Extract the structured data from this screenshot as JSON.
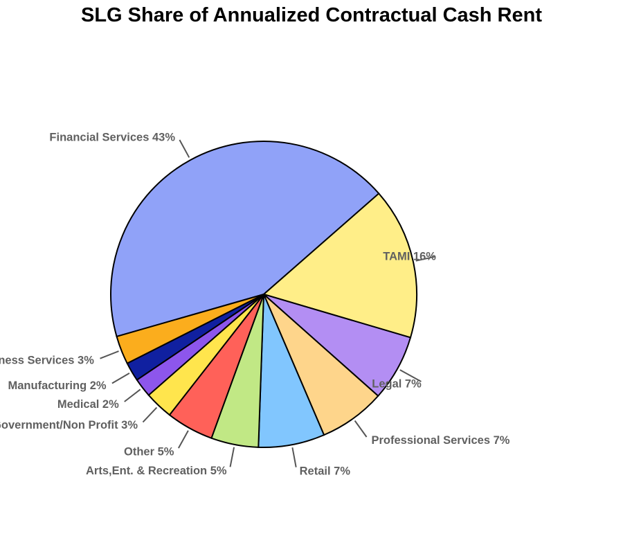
{
  "chart_data": {
    "type": "pie",
    "title": "SLG Share of Annualized Contractual Cash Rent",
    "slices": [
      {
        "label": "Financial Services",
        "pct_label": "43%",
        "value": 43.0,
        "color": "#90a2f8"
      },
      {
        "label": "TAMI",
        "pct_label": "16%",
        "value": 16.0,
        "color": "#ffee88"
      },
      {
        "label": "Legal",
        "pct_label": "7%",
        "value": 7.0,
        "color": "#b38ef3"
      },
      {
        "label": "Professional Services",
        "pct_label": "7%",
        "value": 7.0,
        "color": "#fed58b"
      },
      {
        "label": "Retail",
        "pct_label": "7%",
        "value": 7.0,
        "color": "#81c6fe"
      },
      {
        "label": "Arts,Ent. & Recreation",
        "pct_label": "5%",
        "value": 5.0,
        "color": "#c1e885"
      },
      {
        "label": "Other",
        "pct_label": "5%",
        "value": 5.0,
        "color": "#ff6159"
      },
      {
        "label": "Government/Non Profit",
        "pct_label": "3%",
        "value": 3.0,
        "color": "#ffe54d"
      },
      {
        "label": "Medical",
        "pct_label": "2%",
        "value": 2.0,
        "color": "#8d56ec"
      },
      {
        "label": "Manufacturing",
        "pct_label": "2%",
        "value": 2.0,
        "color": "#1020a0"
      },
      {
        "label": "Business Services",
        "pct_label": "3%",
        "value": 3.0,
        "color": "#fbad1d"
      }
    ]
  }
}
